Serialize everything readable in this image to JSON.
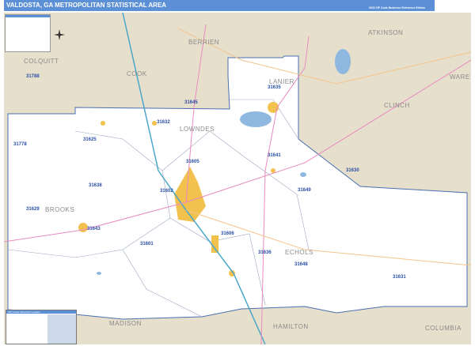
{
  "header": {
    "title": "VALDOSTA, GA METROPOLITAN STATISTICAL AREA",
    "edition": "2020 ZIP Code Business Reference Edition"
  },
  "colors": {
    "header": "#5b8fd6",
    "land": "#e6dfcc",
    "msa": "#ffffff",
    "water": "#8fb8e0",
    "city": "#f2c14e",
    "interstate": "#4aa7c9",
    "us_highway": "#e98ac0",
    "state_highway": "#f2c48a",
    "zip_label": "#2a4fa8"
  },
  "counties": [
    "BERRIEN",
    "ATKINSON",
    "COLQUITT",
    "COOK",
    "LANIER",
    "CLINCH",
    "WARE",
    "LOWNDES",
    "BROOKS",
    "ECHOLS",
    "MADISON",
    "HAMILTON",
    "COLUMBIA"
  ],
  "zips": [
    "31788",
    "31645",
    "31635",
    "31632",
    "31625",
    "31778",
    "31605",
    "31638",
    "31641",
    "31630",
    "31602",
    "31629",
    "31643",
    "31649",
    "31606",
    "31601",
    "31636",
    "31648",
    "31631"
  ],
  "icons": [
    "compass-rose-icon",
    "publisher-logo"
  ],
  "table": {
    "title": "ZIP Codes Index/Grid Location"
  }
}
